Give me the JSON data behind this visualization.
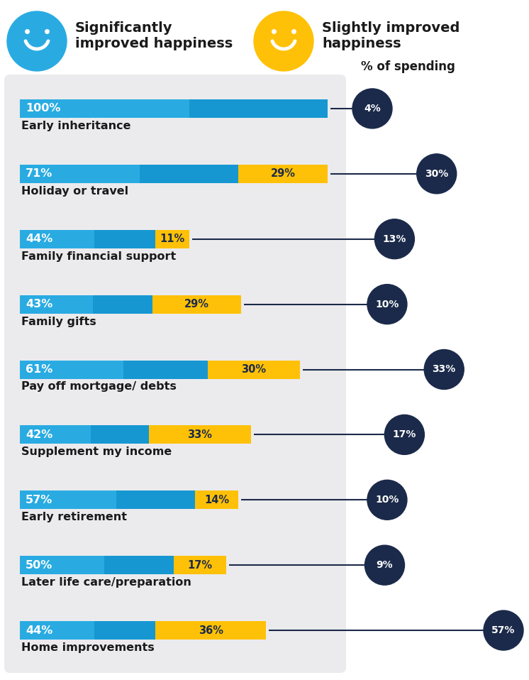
{
  "categories": [
    "Early inheritance",
    "Holiday or travel",
    "Family financial support",
    "Family gifts",
    "Pay off mortgage/ debts",
    "Supplement my income",
    "Early retirement",
    "Later life care/preparation",
    "Home improvements"
  ],
  "blue_values": [
    100,
    71,
    44,
    43,
    61,
    42,
    57,
    50,
    44
  ],
  "yellow_values": [
    0,
    29,
    11,
    29,
    30,
    33,
    14,
    17,
    36
  ],
  "spending_pct": [
    4,
    30,
    13,
    10,
    33,
    17,
    10,
    9,
    57
  ],
  "blue_color_light": "#29ABE2",
  "blue_color_dark": "#0080C0",
  "yellow_color": "#FFC107",
  "circle_color": "#1B2A4A",
  "bar_bg_color": "#EBEBEE",
  "legend_blue_label": "Significantly\nimproved happiness",
  "legend_yellow_label": "Slightly improved\nhappiness",
  "spending_label": "% of spending",
  "legend_blue_color": "#29ABE2",
  "legend_yellow_color": "#FFC107"
}
